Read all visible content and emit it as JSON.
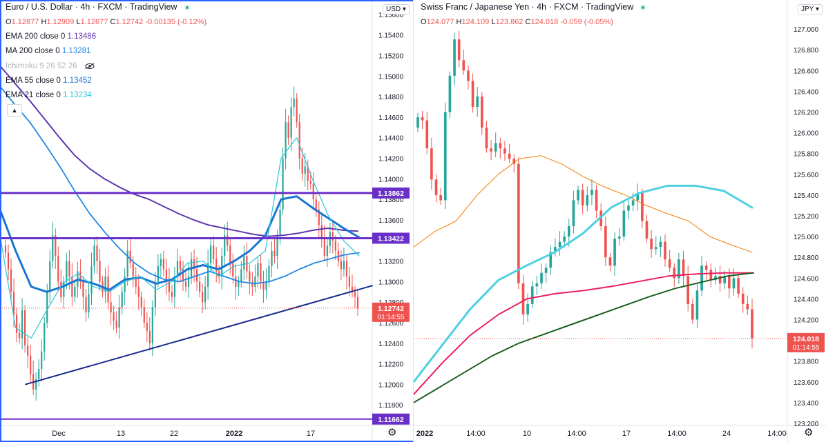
{
  "colors": {
    "up": "#26a69a",
    "down": "#ef5350",
    "purple": "#6a2fc8",
    "navy": "#1a2a8c",
    "ema200": "#5e35b1",
    "ma200": "#1e88e5",
    "ema55": "#1976d2",
    "ema21": "#26c6da",
    "orange": "#f57c00",
    "cyan": "#4dd0e1",
    "crimson": "#e91e63",
    "darkgreen": "#1b5e20"
  },
  "left": {
    "title": "Euro / U.S. Dollar · 4h · FXCM · TradingView",
    "ohlc": {
      "o": "1.12877",
      "h": "1.12909",
      "l": "1.12677",
      "c": "1.12742",
      "chg": "-0.00135 (-0.12%)"
    },
    "indicators": [
      {
        "name": "EMA 200 close 0",
        "value": "1.13486",
        "color": "#5e35b1"
      },
      {
        "name": "MA 200 close 0",
        "value": "1.13281",
        "color": "#1e88e5"
      },
      {
        "name": "Ichimoku 9 26 52 26",
        "value": "",
        "color": "#b2b5be"
      },
      {
        "name": "EMA 55 close 0",
        "value": "1.13452",
        "color": "#1976d2"
      },
      {
        "name": "EMA 21 close 0",
        "value": "1.13234",
        "color": "#26c6da"
      }
    ],
    "currency": "USD",
    "last_price": "1.12742",
    "countdown": "01:14:55",
    "hlines": [
      {
        "price": "1.13862",
        "value": 1.13862
      },
      {
        "price": "1.13422",
        "value": 1.13422
      },
      {
        "price": "1.11662",
        "value": 1.11662
      }
    ],
    "time_labels": [
      "Dec",
      "13",
      "22",
      "2022",
      "17"
    ]
  },
  "right": {
    "title": "Swiss Franc / Japanese Yen · 4h · FXCM · TradingView",
    "ohlc": {
      "o": "124.077",
      "h": "124.109",
      "l": "123.862",
      "c": "124.018",
      "chg": "-0.059 (-0.05%)"
    },
    "currency": "JPY",
    "last_price": "124.018",
    "countdown": "01:14:55",
    "time_labels": [
      "2022",
      "14:00",
      "10",
      "14:00",
      "17",
      "14:00",
      "24",
      "14:00"
    ]
  },
  "chart_data": [
    {
      "type": "line",
      "title": "Euro / U.S. Dollar · 4h · FXCM",
      "ylim": [
        1.116,
        1.157
      ],
      "yticks": [
        "1.15600",
        "1.15400",
        "1.15200",
        "1.15000",
        "1.14800",
        "1.14600",
        "1.14400",
        "1.14200",
        "1.14000",
        "1.13800",
        "1.13600",
        "1.13400",
        "1.13200",
        "1.13000",
        "1.12800",
        "1.12600",
        "1.12400",
        "1.12200",
        "1.12000",
        "1.11800",
        "1.11600"
      ],
      "candles_close": [
        1.1328,
        1.1312,
        1.129,
        1.1268,
        1.125,
        1.1245,
        1.1272,
        1.1238,
        1.1228,
        1.121,
        1.1195,
        1.1205,
        1.1215,
        1.1232,
        1.126,
        1.129,
        1.132,
        1.1345,
        1.1325,
        1.13,
        1.1285,
        1.13,
        1.132,
        1.1305,
        1.1285,
        1.1295,
        1.131,
        1.13,
        1.1285,
        1.127,
        1.1288,
        1.1315,
        1.1335,
        1.132,
        1.13,
        1.129,
        1.1305,
        1.128,
        1.127,
        1.1262,
        1.1255,
        1.1275,
        1.129,
        1.1305,
        1.133,
        1.1318,
        1.1305,
        1.1295,
        1.1285,
        1.1275,
        1.126,
        1.1252,
        1.124,
        1.1275,
        1.13,
        1.1315,
        1.1322,
        1.1312,
        1.13,
        1.129,
        1.1285,
        1.1305,
        1.132,
        1.1312,
        1.13,
        1.1295,
        1.1305,
        1.1322,
        1.1312,
        1.13,
        1.129,
        1.128,
        1.1295,
        1.1318,
        1.1335,
        1.1322,
        1.131,
        1.1305,
        1.1325,
        1.1345,
        1.1335,
        1.1318,
        1.1305,
        1.1295,
        1.13,
        1.1312,
        1.1325,
        1.131,
        1.13,
        1.1295,
        1.1305,
        1.1318,
        1.13,
        1.1292,
        1.13,
        1.1315,
        1.133,
        1.1325,
        1.1345,
        1.137,
        1.142,
        1.1455,
        1.144,
        1.147,
        1.1478,
        1.1455,
        1.142,
        1.1405,
        1.1412,
        1.1398,
        1.1395,
        1.138,
        1.137,
        1.1355,
        1.1342,
        1.1325,
        1.1335,
        1.1348,
        1.134,
        1.133,
        1.132,
        1.1312,
        1.132,
        1.1305,
        1.1295,
        1.129,
        1.1285,
        1.1274
      ],
      "series": [
        {
          "name": "EMA 200 close 0",
          "values": [
            1.151,
            1.1493,
            1.1476,
            1.1458,
            1.144,
            1.1423,
            1.141,
            1.14,
            1.1392,
            1.1385,
            1.138,
            1.1373,
            1.1366,
            1.136,
            1.1355,
            1.1352,
            1.1349,
            1.1346,
            1.1344,
            1.1345,
            1.1347,
            1.135,
            1.1352,
            1.135,
            1.1349
          ]
        },
        {
          "name": "MA 200 close 0",
          "values": [
            1.149,
            1.1472,
            1.1455,
            1.1434,
            1.1412,
            1.1388,
            1.1366,
            1.1348,
            1.1332,
            1.1318,
            1.1308,
            1.1302,
            1.13,
            1.1305,
            1.131,
            1.1305,
            1.13,
            1.1298,
            1.13,
            1.1305,
            1.1312,
            1.1318,
            1.1322,
            1.1326,
            1.1328
          ]
        },
        {
          "name": "EMA 55 close 0",
          "values": [
            1.137,
            1.133,
            1.1295,
            1.129,
            1.1295,
            1.1302,
            1.1298,
            1.1292,
            1.1302,
            1.1304,
            1.1298,
            1.1302,
            1.1312,
            1.1316,
            1.1312,
            1.132,
            1.133,
            1.1345,
            1.138,
            1.1383,
            1.1372,
            1.1362,
            1.1352,
            1.1343
          ]
        },
        {
          "name": "EMA 21 close 0",
          "values": [
            1.1345,
            1.1255,
            1.1245,
            1.1272,
            1.1298,
            1.1308,
            1.1295,
            1.129,
            1.13,
            1.1305,
            1.1292,
            1.13,
            1.1318,
            1.132,
            1.1305,
            1.1315,
            1.1318,
            1.133,
            1.142,
            1.144,
            1.14,
            1.1365,
            1.134,
            1.1325
          ]
        },
        {
          "name": "Trendline",
          "values": [
            1.12,
            1.1296
          ]
        }
      ]
    },
    {
      "type": "line",
      "title": "Swiss Franc / Japanese Yen · 4h · FXCM",
      "ylim": [
        123.18,
        127.24
      ],
      "yticks": [
        "127.200",
        "127.000",
        "126.800",
        "126.600",
        "126.400",
        "126.200",
        "126.000",
        "125.800",
        "125.600",
        "125.400",
        "125.200",
        "125.000",
        "124.800",
        "124.600",
        "124.400",
        "124.200",
        "124.000",
        "123.800",
        "123.600",
        "123.400",
        "123.200"
      ],
      "candles_close": [
        126.15,
        126.12,
        125.85,
        125.55,
        125.4,
        125.35,
        126.2,
        126.55,
        126.9,
        126.7,
        126.6,
        126.5,
        126.25,
        126.35,
        126.05,
        125.85,
        125.82,
        125.9,
        125.85,
        125.8,
        125.75,
        125.7,
        124.55,
        124.25,
        124.35,
        124.52,
        124.55,
        124.65,
        124.7,
        124.85,
        124.9,
        124.95,
        125.0,
        125.1,
        125.35,
        125.45,
        125.3,
        125.4,
        125.45,
        125.25,
        125.1,
        124.8,
        124.72,
        124.98,
        125.0,
        125.25,
        125.3,
        125.35,
        125.42,
        125.15,
        124.98,
        124.88,
        124.9,
        124.95,
        124.78,
        124.7,
        124.6,
        124.78,
        124.62,
        124.35,
        124.2,
        124.48,
        124.72,
        124.68,
        124.58,
        124.62,
        124.55,
        124.62,
        124.5,
        124.6,
        124.45,
        124.35,
        124.3,
        124.02
      ],
      "series": [
        {
          "name": "Orange MA",
          "values": [
            124.9,
            125.05,
            125.15,
            125.4,
            125.6,
            125.75,
            125.78,
            125.7,
            125.58,
            125.48,
            125.4,
            125.3,
            125.22,
            125.15,
            125.0,
            124.92,
            124.85
          ]
        },
        {
          "name": "Cyan MA",
          "values": [
            123.6,
            123.95,
            124.3,
            124.58,
            124.72,
            124.85,
            125.03,
            125.28,
            125.42,
            125.49,
            125.49,
            125.44,
            125.28
          ]
        },
        {
          "name": "Crimson MA",
          "values": [
            123.48,
            123.78,
            124.05,
            124.25,
            124.4,
            124.45,
            124.48,
            124.52,
            124.57,
            124.62,
            124.64,
            124.65,
            124.65
          ]
        },
        {
          "name": "Dark green MA",
          "values": [
            123.4,
            123.55,
            123.7,
            123.85,
            123.97,
            124.06,
            124.15,
            124.24,
            124.33,
            124.42,
            124.5,
            124.56,
            124.62,
            124.65
          ]
        }
      ]
    }
  ]
}
